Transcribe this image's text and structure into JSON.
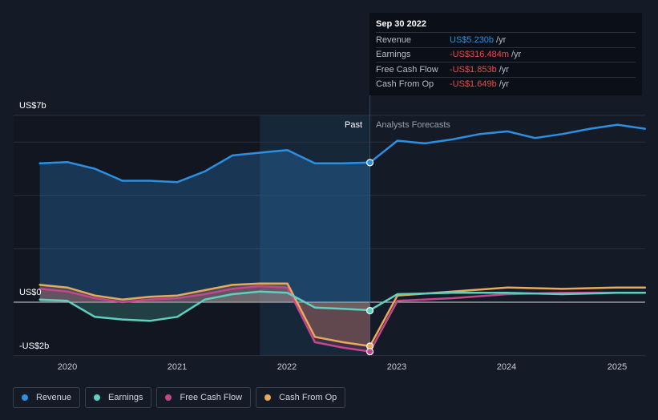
{
  "tooltip": {
    "date": "Sep 30 2022",
    "rows": [
      {
        "label": "Revenue",
        "value": "US$5.230b",
        "unit": "/yr",
        "color": "#2d8fe0"
      },
      {
        "label": "Earnings",
        "value": "-US$316.484m",
        "unit": "/yr",
        "color": "#f0484a"
      },
      {
        "label": "Free Cash Flow",
        "value": "-US$1.853b",
        "unit": "/yr",
        "color": "#f0484a"
      },
      {
        "label": "Cash From Op",
        "value": "-US$1.649b",
        "unit": "/yr",
        "color": "#f0484a"
      }
    ]
  },
  "labels": {
    "past": "Past",
    "forecast": "Analysts Forecasts"
  },
  "colors": {
    "revenue": "#2d8fe0",
    "earnings": "#5fd0c0",
    "fcf": "#c4478e",
    "cfo": "#e8a95b",
    "background": "#151b26"
  },
  "chart_data": {
    "type": "line",
    "y_tick_labels": [
      "US$7b",
      "US$0",
      "-US$2b"
    ],
    "ylim": [
      -2,
      7
    ],
    "x_tick_labels": [
      "2020",
      "2021",
      "2022",
      "2023",
      "2024",
      "2025"
    ],
    "xlim": [
      2019.5,
      2025.25
    ],
    "divider_x": 2022.75,
    "grid": true,
    "series": [
      {
        "name": "Revenue",
        "color": "#2d8fe0",
        "points": [
          [
            2019.75,
            5.2
          ],
          [
            2020.0,
            5.25
          ],
          [
            2020.25,
            5.0
          ],
          [
            2020.5,
            4.55
          ],
          [
            2020.75,
            4.55
          ],
          [
            2021.0,
            4.5
          ],
          [
            2021.25,
            4.9
          ],
          [
            2021.5,
            5.5
          ],
          [
            2021.75,
            5.6
          ],
          [
            2022.0,
            5.7
          ],
          [
            2022.25,
            5.2
          ],
          [
            2022.5,
            5.2
          ],
          [
            2022.75,
            5.23
          ],
          [
            2023.0,
            6.05
          ],
          [
            2023.25,
            5.95
          ],
          [
            2023.5,
            6.1
          ],
          [
            2023.75,
            6.3
          ],
          [
            2024.0,
            6.4
          ],
          [
            2024.25,
            6.15
          ],
          [
            2024.5,
            6.3
          ],
          [
            2024.75,
            6.5
          ],
          [
            2025.0,
            6.65
          ],
          [
            2025.25,
            6.5
          ]
        ]
      },
      {
        "name": "Earnings",
        "color": "#5fd0c0",
        "points": [
          [
            2019.75,
            0.1
          ],
          [
            2020.0,
            0.05
          ],
          [
            2020.25,
            -0.55
          ],
          [
            2020.5,
            -0.65
          ],
          [
            2020.75,
            -0.7
          ],
          [
            2021.0,
            -0.55
          ],
          [
            2021.25,
            0.1
          ],
          [
            2021.5,
            0.3
          ],
          [
            2021.75,
            0.4
          ],
          [
            2022.0,
            0.35
          ],
          [
            2022.25,
            -0.2
          ],
          [
            2022.5,
            -0.25
          ],
          [
            2022.75,
            -0.3
          ],
          [
            2023.0,
            0.3
          ],
          [
            2023.5,
            0.35
          ],
          [
            2024.0,
            0.35
          ],
          [
            2024.5,
            0.3
          ],
          [
            2025.0,
            0.35
          ],
          [
            2025.25,
            0.35
          ]
        ]
      },
      {
        "name": "Free Cash Flow",
        "color": "#c4478e",
        "points": [
          [
            2019.75,
            0.5
          ],
          [
            2020.0,
            0.4
          ],
          [
            2020.25,
            0.15
          ],
          [
            2020.5,
            0.0
          ],
          [
            2020.75,
            0.1
          ],
          [
            2021.0,
            0.15
          ],
          [
            2021.25,
            0.3
          ],
          [
            2021.5,
            0.5
          ],
          [
            2021.75,
            0.6
          ],
          [
            2022.0,
            0.55
          ],
          [
            2022.25,
            -1.5
          ],
          [
            2022.5,
            -1.7
          ],
          [
            2022.75,
            -1.85
          ],
          [
            2023.0,
            0.05
          ],
          [
            2023.5,
            0.15
          ],
          [
            2024.0,
            0.3
          ],
          [
            2024.5,
            0.35
          ],
          [
            2025.0,
            0.35
          ],
          [
            2025.25,
            0.35
          ]
        ]
      },
      {
        "name": "Cash From Op",
        "color": "#e8a95b",
        "points": [
          [
            2019.75,
            0.65
          ],
          [
            2020.0,
            0.55
          ],
          [
            2020.25,
            0.25
          ],
          [
            2020.5,
            0.1
          ],
          [
            2020.75,
            0.2
          ],
          [
            2021.0,
            0.25
          ],
          [
            2021.25,
            0.45
          ],
          [
            2021.5,
            0.65
          ],
          [
            2021.75,
            0.7
          ],
          [
            2022.0,
            0.7
          ],
          [
            2022.25,
            -1.3
          ],
          [
            2022.5,
            -1.5
          ],
          [
            2022.75,
            -1.65
          ],
          [
            2023.0,
            0.25
          ],
          [
            2023.5,
            0.4
          ],
          [
            2024.0,
            0.55
          ],
          [
            2024.5,
            0.5
          ],
          [
            2025.0,
            0.55
          ],
          [
            2025.25,
            0.55
          ]
        ]
      }
    ],
    "highlight": [
      {
        "series": "Revenue",
        "x": 2022.75,
        "y": 5.23
      },
      {
        "series": "Earnings",
        "x": 2022.75,
        "y": -0.3165
      },
      {
        "series": "Cash From Op",
        "x": 2022.75,
        "y": -1.649
      },
      {
        "series": "Free Cash Flow",
        "x": 2022.75,
        "y": -1.853
      }
    ]
  },
  "legend": [
    {
      "label": "Revenue",
      "color": "#2d8fe0"
    },
    {
      "label": "Earnings",
      "color": "#5fd0c0"
    },
    {
      "label": "Free Cash Flow",
      "color": "#c4478e"
    },
    {
      "label": "Cash From Op",
      "color": "#e8a95b"
    }
  ]
}
